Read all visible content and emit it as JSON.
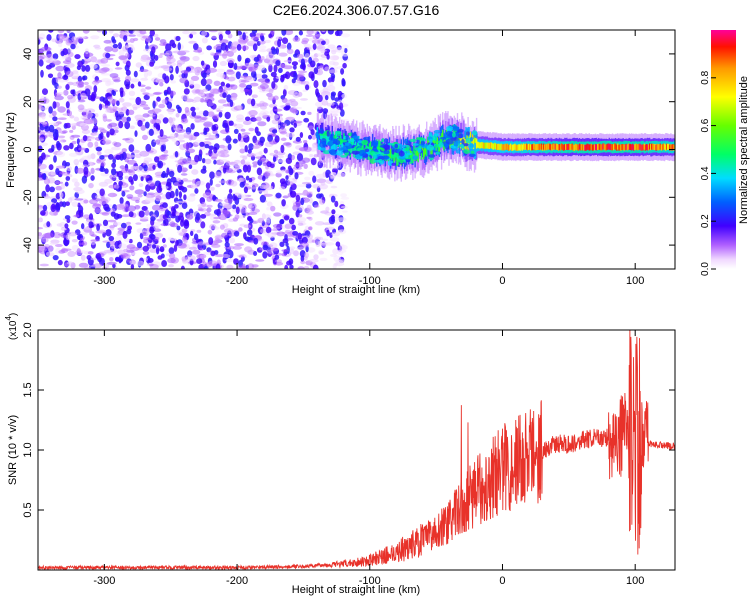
{
  "title": "C2E6.2024.306.07.57.G16",
  "chart_data": [
    {
      "type": "heatmap",
      "xlabel": "Height of straight line (km)",
      "ylabel": "Frequency (Hz)",
      "xlim": [
        -350,
        130
      ],
      "ylim": [
        -50,
        50
      ],
      "x_ticks": [
        -300,
        -200,
        -100,
        0,
        100
      ],
      "y_ticks": [
        -40,
        -20,
        0,
        20,
        40
      ],
      "grid": false,
      "colorbar": {
        "label": "Normalized spectral amplitude",
        "range": [
          0,
          1
        ],
        "ticks": [
          "0.0",
          "0.2",
          "0.4",
          "0.6",
          "0.8"
        ],
        "colors": [
          "#ffffff",
          "#cc88ff",
          "#8800ff",
          "#2200ff",
          "#00aaff",
          "#00ffcc",
          "#00ff00",
          "#aaff00",
          "#ffff00",
          "#ff8800",
          "#ff0000",
          "#ff00aa"
        ]
      },
      "noise_region": {
        "x_range": [
          -350,
          -130
        ],
        "amplitude": [
          0.05,
          0.25
        ]
      },
      "signal_line": [
        {
          "x": -140,
          "y": 5,
          "amplitude": 0.4
        },
        {
          "x": -120,
          "y": 2,
          "amplitude": 0.45
        },
        {
          "x": -100,
          "y": 0,
          "amplitude": 0.5
        },
        {
          "x": -80,
          "y": -2,
          "amplitude": 0.55
        },
        {
          "x": -60,
          "y": 0,
          "amplitude": 0.55
        },
        {
          "x": -40,
          "y": 5,
          "amplitude": 0.6
        },
        {
          "x": -20,
          "y": 2,
          "amplitude": 0.75
        },
        {
          "x": 0,
          "y": 1,
          "amplitude": 0.8
        },
        {
          "x": 50,
          "y": 1,
          "amplitude": 0.9
        },
        {
          "x": 100,
          "y": 1,
          "amplitude": 0.9
        },
        {
          "x": 130,
          "y": 1,
          "amplitude": 0.85
        }
      ]
    },
    {
      "type": "line",
      "xlabel": "Height of straight line (km)",
      "ylabel": "SNR (10 * v/v)",
      "y_multiplier": "(x10^4)",
      "y_multiplier_base": "(x10",
      "y_multiplier_exp": "4",
      "xlim": [
        -350,
        130
      ],
      "ylim": [
        0,
        2.0
      ],
      "x_ticks": [
        -300,
        -200,
        -100,
        0,
        100
      ],
      "y_ticks": [
        0.5,
        1.0,
        1.5,
        2.0
      ],
      "grid": false,
      "series": [
        {
          "color": "#e8322a",
          "x": [
            -350,
            -300,
            -250,
            -200,
            -150,
            -120,
            -100,
            -80,
            -60,
            -40,
            -30,
            -20,
            -10,
            0,
            10,
            20,
            30,
            40,
            50,
            60,
            70,
            80,
            90,
            95,
            100,
            105,
            110,
            120,
            130
          ],
          "y": [
            0.02,
            0.02,
            0.02,
            0.02,
            0.03,
            0.05,
            0.08,
            0.15,
            0.25,
            0.4,
            0.55,
            0.65,
            0.75,
            0.85,
            0.9,
            0.95,
            1.0,
            1.05,
            1.05,
            1.08,
            1.1,
            1.1,
            1.12,
            1.2,
            1.3,
            1.1,
            1.05,
            1.04,
            1.03
          ]
        }
      ]
    }
  ]
}
